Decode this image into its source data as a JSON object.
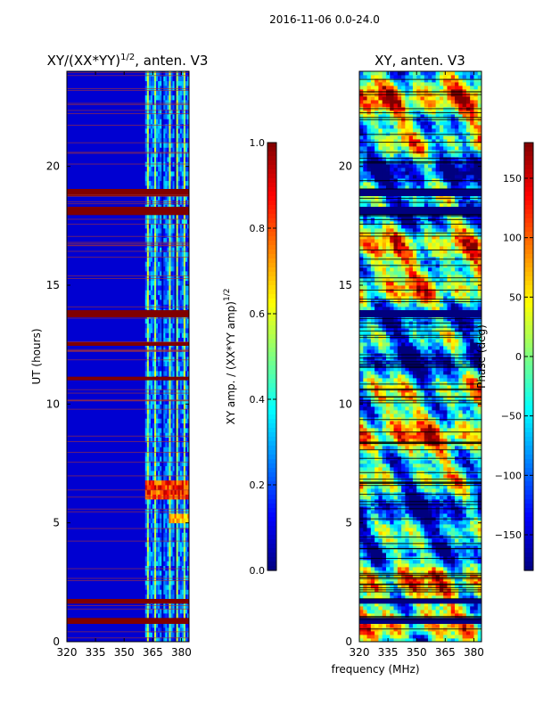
{
  "figure": {
    "suptitle": "2016-11-06 0.0-24.0"
  },
  "colors": {
    "jet": [
      "#00007f",
      "#0000ff",
      "#007fff",
      "#00ffff",
      "#7fff7f",
      "#ffff00",
      "#ff7f00",
      "#ff0000",
      "#7f0000"
    ],
    "axes": "#000000",
    "background": "#ffffff"
  },
  "chart_data": [
    {
      "type": "heatmap",
      "title": "XY/(XX*YY)",
      "title_sup": "1/2",
      "title_suffix": ", anten. V3",
      "ylabel": "UT (hours)",
      "xlabel": "",
      "xlim": [
        320,
        384
      ],
      "ylim": [
        0,
        24
      ],
      "xticks": [
        320,
        335,
        350,
        365,
        380
      ],
      "yticks": [
        0,
        5,
        10,
        15,
        20
      ],
      "colorbar": {
        "label": "XY amp. / (XX*YY amp)",
        "label_sup": "1/2",
        "range": [
          0.0,
          1.0
        ],
        "ticks": [
          "0.0",
          "0.2",
          "0.4",
          "0.6",
          "0.8",
          "1.0"
        ]
      },
      "flagged_bands_hours": [
        [
          18.75,
          19.05
        ],
        [
          17.95,
          18.3
        ],
        [
          13.65,
          13.95
        ],
        [
          12.45,
          12.6
        ],
        [
          11.0,
          11.15
        ],
        [
          1.6,
          1.8
        ],
        [
          0.75,
          1.0
        ]
      ],
      "notable": "amplitude near 0.1 below 361 MHz, up to about 0.9 at 363-384 MHz between 5.9 and 6.9 UT"
    },
    {
      "type": "heatmap",
      "title": "XY, anten. V3",
      "xlabel": "frequency (MHz)",
      "ylabel": "",
      "xlim": [
        320,
        384
      ],
      "ylim": [
        0,
        24
      ],
      "xticks": [
        320,
        335,
        350,
        365,
        380
      ],
      "yticks": [
        0,
        5,
        10,
        15,
        20
      ],
      "colorbar": {
        "label": "Phase (deg)",
        "range": [
          -180,
          180
        ],
        "ticks": [
          "-150",
          "-100",
          "-50",
          "0",
          "50",
          "100",
          "150"
        ]
      },
      "notable": "phase spans the full -180 to 180 range across all frequencies"
    }
  ]
}
